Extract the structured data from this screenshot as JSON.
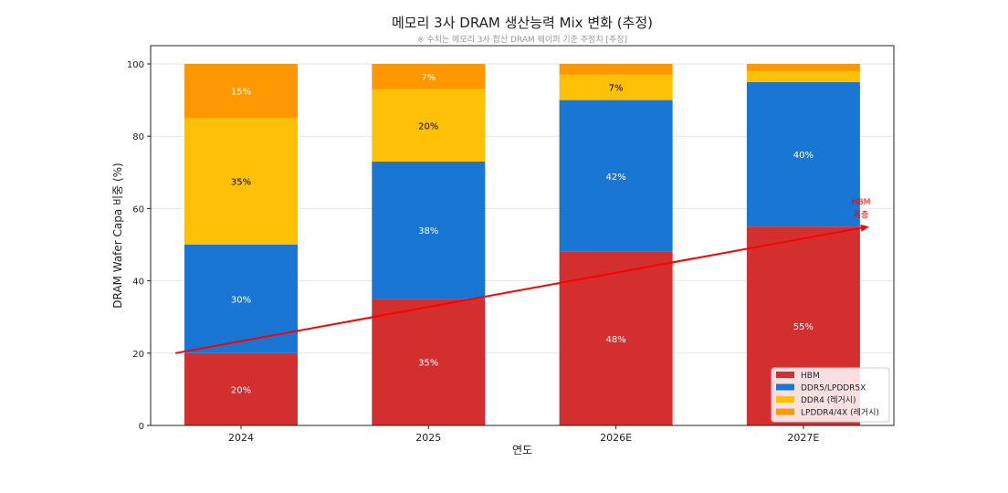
{
  "chart_data": {
    "type": "bar",
    "stacked": true,
    "title": "메모리 3사 DRAM 생산능력 Mix 변화 (추정)",
    "subtitle": "※ 수치는 메모리 3사 합산 DRAM 웨이퍼 기준 추정치 [추정]",
    "xlabel": "연도",
    "ylabel": "DRAM Wafer Capa 비중 (%)",
    "ylim": [
      0,
      105
    ],
    "yticks": [
      0,
      20,
      40,
      60,
      80,
      100
    ],
    "grid": true,
    "legend_position": "bottom-right",
    "categories": [
      "2024",
      "2025",
      "2026E",
      "2027E"
    ],
    "series": [
      {
        "name": "HBM",
        "color": "#d32f2f",
        "values": [
          20,
          35,
          48,
          55
        ],
        "label_color": "#ffffff"
      },
      {
        "name": "DDR5/LPDDR5X",
        "color": "#1976d2",
        "values": [
          30,
          38,
          42,
          40
        ],
        "label_color": "#ffffff"
      },
      {
        "name": "DDR4 (레거시)",
        "color": "#ffc107",
        "values": [
          35,
          20,
          7,
          3
        ],
        "label_color": "#000000"
      },
      {
        "name": "LPDDR4/4X (레거시)",
        "color": "#ff9800",
        "values": [
          15,
          7,
          3,
          2
        ],
        "label_color": "#ffffff"
      }
    ],
    "data_labels": [
      [
        "20%",
        "35%",
        "48%",
        "55%"
      ],
      [
        "30%",
        "38%",
        "42%",
        "40%"
      ],
      [
        "35%",
        "20%",
        "7%",
        ""
      ],
      [
        "15%",
        "7%",
        "",
        ""
      ]
    ],
    "annotation": {
      "text_line1": "HBM",
      "text_line2": "폭증",
      "color": "#ff0000",
      "arrow_from": {
        "x": -0.35,
        "y": 20
      },
      "arrow_to": {
        "x": 3.35,
        "y": 55
      }
    }
  }
}
